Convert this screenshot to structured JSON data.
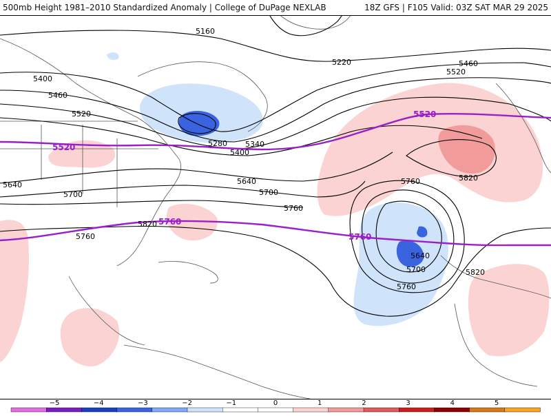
{
  "header": {
    "title": "500mb Height 1981–2010 Standardized Anomaly | College of DuPage NEXLAB",
    "run_info": "18Z GFS | F105 Valid: 03Z SAT MAR 29 2025"
  },
  "map": {
    "contour_labels": [
      "5160",
      "5220",
      "5400",
      "5460",
      "5520",
      "5280",
      "5340",
      "5400",
      "5460",
      "5520",
      "5640",
      "5700",
      "5760",
      "5640",
      "5700",
      "5760",
      "5820",
      "5760",
      "5640",
      "5700",
      "5760",
      "5820",
      "5820"
    ],
    "climo_labels": [
      "5520",
      "5520",
      "5760",
      "5760"
    ],
    "colors": {
      "contour": "#000000",
      "climo_contour": "#9b1fc9",
      "coast": "#555555",
      "neg1": "#cfe3fb",
      "neg2": "#7fa8f5",
      "neg3": "#3a63e0",
      "pos1": "#fbd3d3",
      "pos2": "#f29b9b",
      "pos3": "#e05b5b"
    }
  },
  "colorbar": {
    "ticks": [
      "−5",
      "−4",
      "−3",
      "−2",
      "−1",
      "0",
      "1",
      "2",
      "3",
      "4",
      "5"
    ],
    "colors": [
      "#e070e0",
      "#7a1fbf",
      "#1a3fbf",
      "#3a63e0",
      "#7fa8f5",
      "#cfe3fb",
      "#ffffff",
      "#ffffff",
      "#fbd3d3",
      "#f29b9b",
      "#e05b5b",
      "#c81e1e",
      "#8b0000",
      "#d47a1a",
      "#f5a623"
    ]
  }
}
